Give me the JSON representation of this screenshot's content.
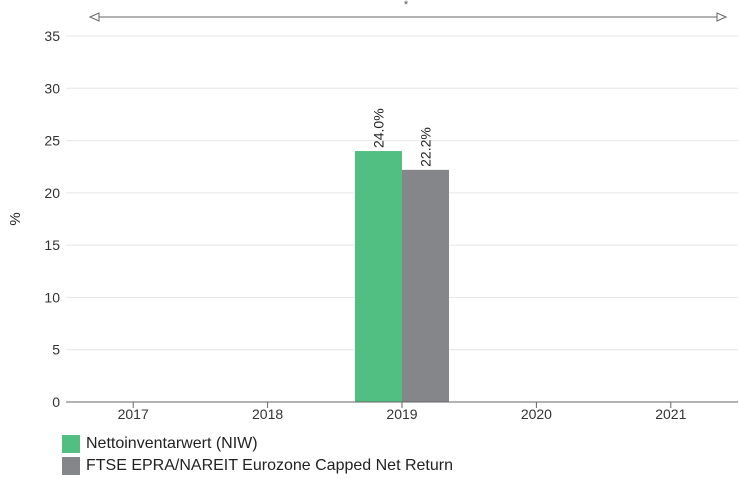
{
  "chart_data": {
    "type": "bar",
    "ylabel": "%",
    "ylim": [
      0,
      35
    ],
    "yticks": [
      "0",
      "5",
      "10",
      "15",
      "20",
      "25",
      "30",
      "35"
    ],
    "categories": [
      "2017",
      "2018",
      "2019",
      "2020",
      "2021"
    ],
    "range_marker": "*",
    "grid": true,
    "legend_position": "bottom-left",
    "series": [
      {
        "name": "Nettoinventarwert (NIW)",
        "color": "#52bf82",
        "values": [
          null,
          null,
          24.0,
          null,
          null
        ],
        "labels": [
          null,
          null,
          "24.0%",
          null,
          null
        ]
      },
      {
        "name": "FTSE EPRA/NAREIT Eurozone Capped Net Return",
        "color": "#858689",
        "values": [
          null,
          null,
          22.2,
          null,
          null
        ],
        "labels": [
          null,
          null,
          "22.2%",
          null,
          null
        ]
      }
    ]
  }
}
